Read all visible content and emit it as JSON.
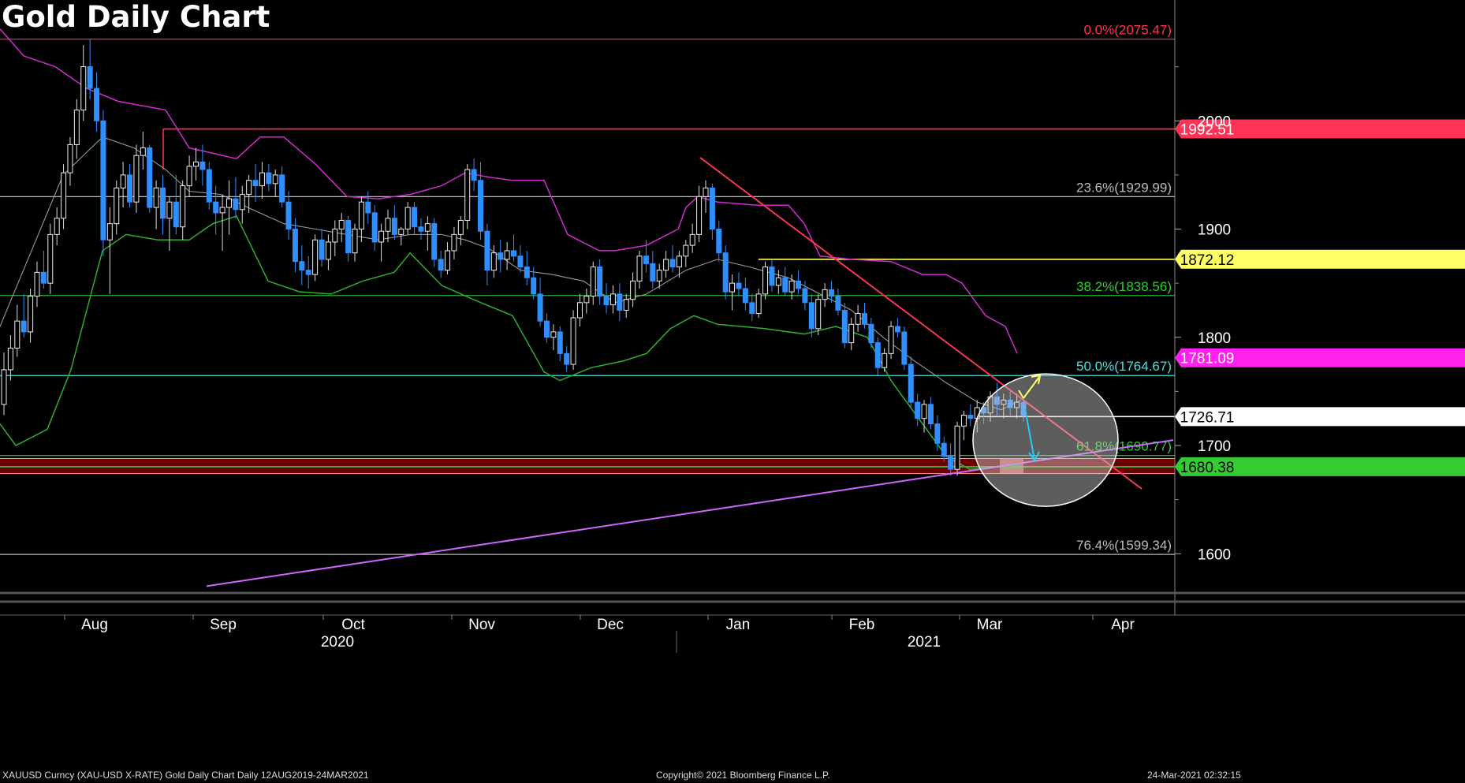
{
  "title": "Gold Daily Chart",
  "footer": {
    "left": "XAUUSD Curncy (XAU-USD X-RATE) Gold Daily Chart  Daily 12AUG2019-24MAR2021",
    "center": "Copyright© 2021 Bloomberg Finance L.P.",
    "right": "24-Mar-2021 02:32:15"
  },
  "colors": {
    "background": "#000000",
    "candle_up": "#ffffff",
    "candle_down": "#2f8fff",
    "resistance_red": "#ff3355",
    "support_red_zone": "#6a0000",
    "yellow_level": "#ffff66",
    "magenta_label": "#ff22ee",
    "green_fib": "#33cc33",
    "cyan_fib": "#44e0e0",
    "bollinger_upper": "#d32bd3",
    "bollinger_lower": "#2fae2f",
    "moving_average": "#999999",
    "trendline_purple": "#cc66ff",
    "grid_white": "#bbbbbb"
  },
  "chart_data": {
    "type": "candlestick",
    "x_axis": {
      "month_labels": [
        "Aug",
        "Sep",
        "Oct",
        "Nov",
        "Dec",
        "Jan",
        "Feb",
        "Mar",
        "Apr"
      ],
      "year_labels": [
        "2020",
        "2021"
      ]
    },
    "y_axis": {
      "ticks": [
        1600,
        1700,
        1800,
        1900,
        2000
      ],
      "range": [
        1560,
        2080
      ]
    },
    "horizontal_levels": [
      {
        "value": 1992.51,
        "label": "1992.51",
        "color": "#ff3355"
      },
      {
        "value": 1872.12,
        "label": "1872.12",
        "color": "#ffff66"
      },
      {
        "value": 1781.09,
        "label": "1781.09",
        "color": "#ff22ee"
      },
      {
        "value": 1726.71,
        "label": "1726.71",
        "color": "#ffffff"
      },
      {
        "value": 1680.38,
        "label": "1680.38",
        "color": "#33cc33"
      }
    ],
    "fib_levels": [
      {
        "value": 2075.47,
        "label": "0.0%(2075.47)",
        "color": "#ff3355"
      },
      {
        "value": 1929.99,
        "label": "23.6%(1929.99)",
        "color": "#bbbbbb"
      },
      {
        "value": 1838.56,
        "label": "38.2%(1838.56)",
        "color": "#33cc33"
      },
      {
        "value": 1764.67,
        "label": "50.0%(1764.67)",
        "color": "#44e0e0"
      },
      {
        "value": 1690.77,
        "label": "61.8%(1690.77)",
        "color": "#33cc33"
      },
      {
        "value": 1599.34,
        "label": "76.4%(1599.34)",
        "color": "#bbbbbb"
      }
    ],
    "support_zone": [
      1674,
      1688
    ],
    "candles": [
      [
        1738,
        1786,
        1728,
        1770
      ],
      [
        1770,
        1802,
        1760,
        1790
      ],
      [
        1790,
        1830,
        1782,
        1815
      ],
      [
        1815,
        1840,
        1800,
        1805
      ],
      [
        1805,
        1845,
        1795,
        1838
      ],
      [
        1838,
        1870,
        1828,
        1860
      ],
      [
        1860,
        1880,
        1845,
        1850
      ],
      [
        1850,
        1905,
        1840,
        1895
      ],
      [
        1895,
        1920,
        1885,
        1910
      ],
      [
        1910,
        1960,
        1900,
        1952
      ],
      [
        1952,
        1985,
        1940,
        1978
      ],
      [
        1978,
        2020,
        1965,
        2010
      ],
      [
        2010,
        2070,
        2000,
        2050
      ],
      [
        2050,
        2075,
        2020,
        2030
      ],
      [
        2030,
        2045,
        1990,
        2000
      ],
      [
        2000,
        2010,
        1875,
        1890
      ],
      [
        1890,
        1920,
        1840,
        1905
      ],
      [
        1905,
        1945,
        1895,
        1938
      ],
      [
        1938,
        1962,
        1920,
        1950
      ],
      [
        1950,
        1960,
        1920,
        1925
      ],
      [
        1925,
        1978,
        1915,
        1968
      ],
      [
        1968,
        1990,
        1955,
        1975
      ],
      [
        1975,
        1978,
        1915,
        1920
      ],
      [
        1920,
        1945,
        1900,
        1938
      ],
      [
        1938,
        1950,
        1895,
        1910
      ],
      [
        1910,
        1930,
        1880,
        1925
      ],
      [
        1925,
        1950,
        1895,
        1902
      ],
      [
        1902,
        1945,
        1890,
        1940
      ],
      [
        1940,
        1968,
        1930,
        1958
      ],
      [
        1958,
        1975,
        1945,
        1962
      ],
      [
        1962,
        1978,
        1940,
        1955
      ],
      [
        1955,
        1962,
        1918,
        1925
      ],
      [
        1925,
        1940,
        1895,
        1915
      ],
      [
        1915,
        1932,
        1880,
        1920
      ],
      [
        1920,
        1945,
        1895,
        1928
      ],
      [
        1928,
        1948,
        1910,
        1918
      ],
      [
        1918,
        1940,
        1905,
        1932
      ],
      [
        1932,
        1950,
        1915,
        1945
      ],
      [
        1945,
        1960,
        1925,
        1940
      ],
      [
        1940,
        1962,
        1928,
        1952
      ],
      [
        1952,
        1960,
        1935,
        1942
      ],
      [
        1942,
        1955,
        1930,
        1950
      ],
      [
        1950,
        1958,
        1920,
        1925
      ],
      [
        1925,
        1935,
        1890,
        1900
      ],
      [
        1900,
        1910,
        1860,
        1870
      ],
      [
        1870,
        1885,
        1848,
        1862
      ],
      [
        1862,
        1875,
        1845,
        1858
      ],
      [
        1858,
        1895,
        1852,
        1890
      ],
      [
        1890,
        1900,
        1865,
        1872
      ],
      [
        1872,
        1895,
        1862,
        1888
      ],
      [
        1888,
        1908,
        1875,
        1900
      ],
      [
        1900,
        1915,
        1888,
        1908
      ],
      [
        1908,
        1912,
        1870,
        1878
      ],
      [
        1878,
        1905,
        1870,
        1900
      ],
      [
        1900,
        1930,
        1888,
        1925
      ],
      [
        1925,
        1935,
        1905,
        1915
      ],
      [
        1915,
        1922,
        1880,
        1888
      ],
      [
        1888,
        1905,
        1870,
        1898
      ],
      [
        1898,
        1918,
        1888,
        1910
      ],
      [
        1910,
        1922,
        1890,
        1895
      ],
      [
        1895,
        1902,
        1885,
        1900
      ],
      [
        1900,
        1925,
        1895,
        1920
      ],
      [
        1920,
        1925,
        1895,
        1902
      ],
      [
        1902,
        1910,
        1890,
        1898
      ],
      [
        1898,
        1912,
        1880,
        1905
      ],
      [
        1905,
        1910,
        1865,
        1872
      ],
      [
        1872,
        1880,
        1855,
        1862
      ],
      [
        1862,
        1888,
        1858,
        1880
      ],
      [
        1880,
        1902,
        1872,
        1895
      ],
      [
        1895,
        1912,
        1885,
        1908
      ],
      [
        1908,
        1960,
        1900,
        1955
      ],
      [
        1955,
        1965,
        1935,
        1945
      ],
      [
        1945,
        1962,
        1890,
        1898
      ],
      [
        1898,
        1905,
        1848,
        1862
      ],
      [
        1862,
        1885,
        1855,
        1878
      ],
      [
        1878,
        1890,
        1860,
        1872
      ],
      [
        1872,
        1888,
        1862,
        1880
      ],
      [
        1880,
        1895,
        1870,
        1875
      ],
      [
        1875,
        1885,
        1860,
        1865
      ],
      [
        1865,
        1880,
        1848,
        1855
      ],
      [
        1855,
        1865,
        1835,
        1840
      ],
      [
        1840,
        1855,
        1810,
        1815
      ],
      [
        1815,
        1822,
        1795,
        1800
      ],
      [
        1800,
        1812,
        1788,
        1805
      ],
      [
        1805,
        1810,
        1778,
        1785
      ],
      [
        1785,
        1792,
        1768,
        1775
      ],
      [
        1775,
        1825,
        1770,
        1818
      ],
      [
        1818,
        1840,
        1810,
        1832
      ],
      [
        1832,
        1845,
        1822,
        1838
      ],
      [
        1838,
        1870,
        1830,
        1865
      ],
      [
        1865,
        1872,
        1830,
        1838
      ],
      [
        1838,
        1850,
        1822,
        1830
      ],
      [
        1830,
        1848,
        1822,
        1840
      ],
      [
        1840,
        1850,
        1815,
        1825
      ],
      [
        1825,
        1840,
        1818,
        1835
      ],
      [
        1835,
        1860,
        1828,
        1852
      ],
      [
        1852,
        1880,
        1845,
        1875
      ],
      [
        1875,
        1890,
        1860,
        1868
      ],
      [
        1868,
        1880,
        1845,
        1852
      ],
      [
        1852,
        1868,
        1845,
        1862
      ],
      [
        1862,
        1880,
        1855,
        1872
      ],
      [
        1872,
        1885,
        1860,
        1865
      ],
      [
        1865,
        1880,
        1855,
        1875
      ],
      [
        1875,
        1890,
        1865,
        1885
      ],
      [
        1885,
        1905,
        1878,
        1895
      ],
      [
        1895,
        1940,
        1888,
        1930
      ],
      [
        1930,
        1945,
        1915,
        1938
      ],
      [
        1938,
        1942,
        1890,
        1900
      ],
      [
        1900,
        1908,
        1870,
        1878
      ],
      [
        1878,
        1885,
        1835,
        1842
      ],
      [
        1842,
        1858,
        1825,
        1850
      ],
      [
        1850,
        1860,
        1838,
        1845
      ],
      [
        1845,
        1855,
        1825,
        1832
      ],
      [
        1832,
        1840,
        1815,
        1822
      ],
      [
        1822,
        1845,
        1818,
        1840
      ],
      [
        1840,
        1870,
        1835,
        1865
      ],
      [
        1865,
        1872,
        1842,
        1848
      ],
      [
        1848,
        1862,
        1840,
        1855
      ],
      [
        1855,
        1865,
        1838,
        1842
      ],
      [
        1842,
        1858,
        1835,
        1852
      ],
      [
        1852,
        1862,
        1840,
        1845
      ],
      [
        1845,
        1852,
        1825,
        1832
      ],
      [
        1832,
        1840,
        1800,
        1808
      ],
      [
        1808,
        1840,
        1802,
        1835
      ],
      [
        1835,
        1850,
        1828,
        1844
      ],
      [
        1844,
        1852,
        1832,
        1838
      ],
      [
        1838,
        1845,
        1820,
        1825
      ],
      [
        1825,
        1832,
        1790,
        1795
      ],
      [
        1795,
        1818,
        1788,
        1812
      ],
      [
        1812,
        1830,
        1805,
        1822
      ],
      [
        1822,
        1832,
        1808,
        1812
      ],
      [
        1812,
        1818,
        1790,
        1795
      ],
      [
        1795,
        1800,
        1765,
        1772
      ],
      [
        1772,
        1790,
        1768,
        1785
      ],
      [
        1785,
        1815,
        1780,
        1810
      ],
      [
        1810,
        1818,
        1800,
        1805
      ],
      [
        1805,
        1810,
        1770,
        1775
      ],
      [
        1775,
        1782,
        1735,
        1740
      ],
      [
        1740,
        1748,
        1718,
        1725
      ],
      [
        1725,
        1742,
        1712,
        1738
      ],
      [
        1738,
        1745,
        1715,
        1720
      ],
      [
        1720,
        1728,
        1695,
        1702
      ],
      [
        1702,
        1708,
        1685,
        1690
      ],
      [
        1690,
        1702,
        1672,
        1678
      ],
      [
        1678,
        1722,
        1672,
        1718
      ],
      [
        1718,
        1732,
        1705,
        1728
      ],
      [
        1728,
        1738,
        1718,
        1725
      ],
      [
        1725,
        1742,
        1712,
        1735
      ],
      [
        1735,
        1740,
        1720,
        1730
      ],
      [
        1730,
        1750,
        1722,
        1745
      ],
      [
        1745,
        1758,
        1728,
        1738
      ],
      [
        1738,
        1748,
        1725,
        1742
      ],
      [
        1742,
        1750,
        1728,
        1735
      ],
      [
        1735,
        1748,
        1725,
        1740
      ],
      [
        1740,
        1745,
        1722,
        1728
      ]
    ],
    "bollinger_upper": [
      [
        0,
        2085
      ],
      [
        30,
        2060
      ],
      [
        70,
        2050
      ],
      [
        110,
        2030
      ],
      [
        150,
        2018
      ],
      [
        210,
        2010
      ],
      [
        240,
        1975
      ],
      [
        270,
        1970
      ],
      [
        300,
        1965
      ],
      [
        330,
        1985
      ],
      [
        360,
        1985
      ],
      [
        400,
        1960
      ],
      [
        440,
        1930
      ],
      [
        480,
        1928
      ],
      [
        520,
        1932
      ],
      [
        560,
        1940
      ],
      [
        590,
        1952
      ],
      [
        620,
        1948
      ],
      [
        650,
        1945
      ],
      [
        690,
        1945
      ],
      [
        720,
        1895
      ],
      [
        760,
        1880
      ],
      [
        780,
        1880
      ],
      [
        820,
        1885
      ],
      [
        860,
        1900
      ],
      [
        870,
        1920
      ],
      [
        885,
        1930
      ],
      [
        910,
        1925
      ],
      [
        960,
        1922
      ],
      [
        1000,
        1922
      ],
      [
        1020,
        1905
      ],
      [
        1040,
        1875
      ],
      [
        1080,
        1872
      ],
      [
        1130,
        1870
      ],
      [
        1170,
        1858
      ],
      [
        1200,
        1858
      ],
      [
        1220,
        1850
      ],
      [
        1250,
        1820
      ],
      [
        1275,
        1810
      ],
      [
        1290,
        1785
      ]
    ],
    "bollinger_lower": [
      [
        0,
        1720
      ],
      [
        20,
        1700
      ],
      [
        60,
        1715
      ],
      [
        90,
        1770
      ],
      [
        130,
        1880
      ],
      [
        160,
        1895
      ],
      [
        200,
        1890
      ],
      [
        240,
        1890
      ],
      [
        270,
        1905
      ],
      [
        300,
        1912
      ],
      [
        320,
        1882
      ],
      [
        340,
        1852
      ],
      [
        380,
        1842
      ],
      [
        420,
        1840
      ],
      [
        460,
        1852
      ],
      [
        500,
        1860
      ],
      [
        520,
        1878
      ],
      [
        560,
        1848
      ],
      [
        600,
        1835
      ],
      [
        650,
        1820
      ],
      [
        690,
        1768
      ],
      [
        710,
        1760
      ],
      [
        750,
        1772
      ],
      [
        790,
        1778
      ],
      [
        820,
        1785
      ],
      [
        850,
        1808
      ],
      [
        880,
        1820
      ],
      [
        910,
        1812
      ],
      [
        940,
        1810
      ],
      [
        970,
        1808
      ],
      [
        1020,
        1803
      ],
      [
        1060,
        1810
      ],
      [
        1100,
        1800
      ],
      [
        1130,
        1760
      ],
      [
        1170,
        1720
      ],
      [
        1200,
        1690
      ],
      [
        1230,
        1678
      ],
      [
        1260,
        1680
      ],
      [
        1295,
        1682
      ]
    ],
    "moving_average": [
      [
        0,
        1810
      ],
      [
        40,
        1880
      ],
      [
        80,
        1950
      ],
      [
        130,
        1985
      ],
      [
        170,
        1975
      ],
      [
        210,
        1955
      ],
      [
        240,
        1935
      ],
      [
        280,
        1932
      ],
      [
        320,
        1918
      ],
      [
        360,
        1905
      ],
      [
        400,
        1900
      ],
      [
        440,
        1895
      ],
      [
        480,
        1890
      ],
      [
        520,
        1895
      ],
      [
        560,
        1895
      ],
      [
        590,
        1890
      ],
      [
        620,
        1882
      ],
      [
        660,
        1862
      ],
      [
        700,
        1858
      ],
      [
        740,
        1852
      ],
      [
        780,
        1832
      ],
      [
        820,
        1840
      ],
      [
        870,
        1862
      ],
      [
        910,
        1872
      ],
      [
        950,
        1865
      ],
      [
        1000,
        1855
      ],
      [
        1040,
        1840
      ],
      [
        1080,
        1825
      ],
      [
        1120,
        1800
      ],
      [
        1160,
        1778
      ],
      [
        1200,
        1758
      ],
      [
        1240,
        1740
      ],
      [
        1270,
        1733
      ],
      [
        1295,
        1742
      ]
    ],
    "trendlines": [
      {
        "name": "downtrend resistance",
        "from": [
          888,
          1966
        ],
        "to": [
          1448,
          1660
        ],
        "color": "#ff3355"
      },
      {
        "name": "uptrend support",
        "from": [
          262,
          1570
        ],
        "to": [
          1488,
          1705
        ],
        "color": "#cc66ff"
      }
    ],
    "annotations": [
      {
        "type": "circle",
        "center": [
          1326,
          1705
        ],
        "radius_x": 46,
        "radius_y": 42
      },
      {
        "type": "arrow",
        "direction": "up",
        "color": "#ffff66"
      },
      {
        "type": "arrow",
        "direction": "down",
        "color": "#22ccff"
      }
    ]
  }
}
